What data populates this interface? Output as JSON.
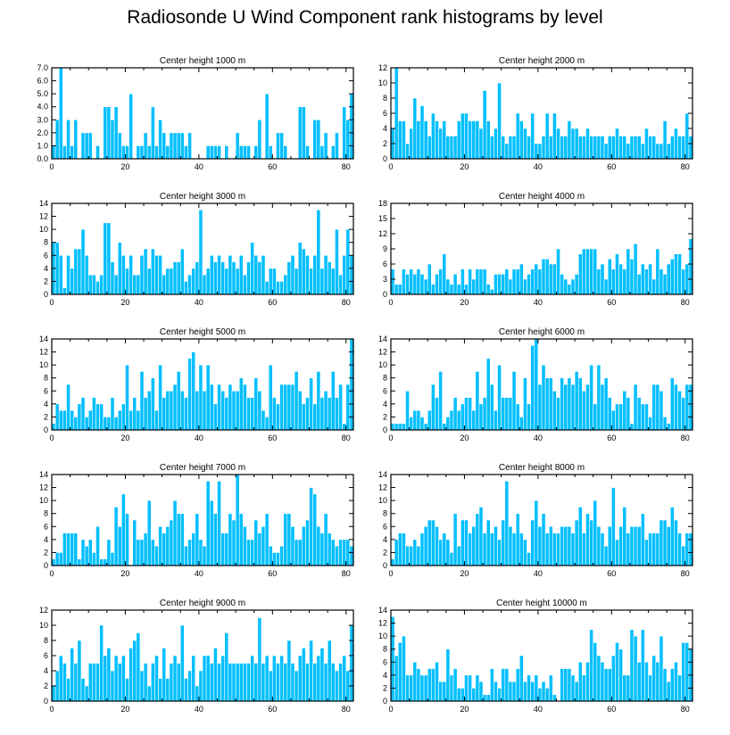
{
  "title": "Radiosonde U Wind Component rank histograms by level",
  "colors": {
    "bar": "#00bfff",
    "bar_edge": "#ffffff",
    "axis": "#000000"
  },
  "chart_data": [
    {
      "type": "bar",
      "title": "Center height 1000 m",
      "xlim": [
        0,
        82
      ],
      "xticks": [
        0,
        20,
        40,
        60,
        80
      ],
      "ylim": [
        0,
        7
      ],
      "yticks": [
        "0.0",
        "1.0",
        "2.0",
        "3.0",
        "4.0",
        "5.0",
        "6.0",
        "7.0"
      ],
      "values": [
        1,
        3,
        7,
        1,
        3,
        1,
        3,
        0,
        2,
        2,
        2,
        0,
        1,
        0,
        4,
        4,
        3,
        4,
        2,
        1,
        1,
        5,
        0,
        1,
        1,
        2,
        1,
        4,
        1,
        3,
        2,
        1,
        2,
        2,
        2,
        2,
        1,
        2,
        0,
        0,
        0,
        0,
        1,
        1,
        1,
        1,
        0,
        1,
        0,
        0,
        2,
        1,
        1,
        1,
        0,
        1,
        3,
        0,
        5,
        1,
        0,
        2,
        2,
        1,
        0,
        0,
        0,
        4,
        4,
        1,
        0,
        3,
        3,
        1,
        2,
        0,
        1,
        2,
        0,
        4,
        3,
        5
      ]
    },
    {
      "type": "bar",
      "title": "Center height 2000 m",
      "xlim": [
        0,
        82
      ],
      "xticks": [
        0,
        20,
        40,
        60,
        80
      ],
      "ylim": [
        0,
        12
      ],
      "yticks": [
        "0",
        "2",
        "4",
        "6",
        "8",
        "10",
        "12"
      ],
      "values": [
        4,
        12,
        5,
        5,
        2,
        4,
        8,
        5,
        7,
        5,
        3,
        6,
        5,
        4,
        5,
        3,
        3,
        3,
        5,
        6,
        6,
        5,
        5,
        5,
        4,
        9,
        5,
        3,
        4,
        10,
        3,
        2,
        3,
        3,
        6,
        5,
        4,
        3,
        6,
        2,
        2,
        3,
        6,
        3,
        6,
        4,
        3,
        3,
        5,
        4,
        4,
        3,
        3,
        4,
        3,
        3,
        3,
        3,
        2,
        3,
        3,
        4,
        3,
        3,
        2,
        3,
        3,
        3,
        2,
        4,
        3,
        3,
        2,
        2,
        5,
        2,
        3,
        4,
        3,
        3,
        6,
        3
      ]
    },
    {
      "type": "bar",
      "title": "Center height 3000 m",
      "xlim": [
        0,
        82
      ],
      "xticks": [
        0,
        20,
        40,
        60,
        80
      ],
      "ylim": [
        0,
        14
      ],
      "yticks": [
        "0",
        "2",
        "4",
        "6",
        "8",
        "10",
        "12",
        "14"
      ],
      "values": [
        8,
        8,
        6,
        1,
        6,
        4,
        7,
        7,
        10,
        6,
        3,
        3,
        2,
        3,
        11,
        11,
        5,
        3,
        8,
        6,
        4,
        6,
        3,
        3,
        6,
        7,
        4,
        7,
        6,
        6,
        3,
        4,
        4,
        5,
        5,
        7,
        2,
        3,
        4,
        5,
        13,
        3,
        4,
        6,
        5,
        6,
        5,
        4,
        6,
        5,
        4,
        6,
        3,
        5,
        8,
        6,
        5,
        6,
        2,
        4,
        4,
        2,
        2,
        3,
        5,
        6,
        4,
        8,
        7,
        6,
        4,
        6,
        13,
        4,
        6,
        5,
        4,
        10,
        3,
        6,
        10,
        6
      ]
    },
    {
      "type": "bar",
      "title": "Center height 4000 m",
      "xlim": [
        0,
        82
      ],
      "xticks": [
        0,
        20,
        40,
        60,
        80
      ],
      "ylim": [
        0,
        18
      ],
      "yticks": [
        "0",
        "3",
        "6",
        "9",
        "12",
        "15",
        "18"
      ],
      "values": [
        5,
        2,
        2,
        5,
        4,
        5,
        4,
        5,
        4,
        3,
        6,
        2,
        4,
        5,
        8,
        3,
        2,
        4,
        2,
        5,
        2,
        5,
        3,
        5,
        5,
        5,
        2,
        1,
        4,
        4,
        4,
        5,
        3,
        5,
        5,
        6,
        3,
        4,
        5,
        6,
        5,
        7,
        7,
        6,
        6,
        9,
        4,
        3,
        2,
        3,
        4,
        8,
        9,
        9,
        9,
        9,
        5,
        6,
        3,
        7,
        5,
        8,
        6,
        5,
        9,
        7,
        10,
        4,
        6,
        5,
        6,
        3,
        9,
        5,
        4,
        6,
        7,
        8,
        8,
        5,
        6,
        11
      ]
    },
    {
      "type": "bar",
      "title": "Center height 5000 m",
      "xlim": [
        0,
        82
      ],
      "xticks": [
        0,
        20,
        40,
        60,
        80
      ],
      "ylim": [
        0,
        14
      ],
      "yticks": [
        "0",
        "2",
        "4",
        "6",
        "8",
        "10",
        "12",
        "14"
      ],
      "values": [
        1,
        4,
        3,
        3,
        7,
        3,
        2,
        4,
        5,
        2,
        3,
        5,
        4,
        4,
        2,
        2,
        5,
        2,
        3,
        4,
        10,
        3,
        5,
        3,
        9,
        5,
        6,
        8,
        3,
        10,
        5,
        6,
        6,
        7,
        9,
        6,
        5,
        11,
        12,
        6,
        10,
        6,
        10,
        7,
        4,
        7,
        6,
        5,
        7,
        6,
        6,
        8,
        7,
        5,
        5,
        8,
        6,
        3,
        2,
        10,
        5,
        4,
        7,
        7,
        7,
        7,
        9,
        6,
        4,
        5,
        8,
        4,
        9,
        5,
        6,
        5,
        9,
        5,
        7,
        1,
        7,
        14
      ]
    },
    {
      "type": "bar",
      "title": "Center height 6000 m",
      "xlim": [
        0,
        82
      ],
      "xticks": [
        0,
        20,
        40,
        60,
        80
      ],
      "ylim": [
        0,
        14
      ],
      "yticks": [
        "0",
        "2",
        "4",
        "6",
        "8",
        "10",
        "12",
        "14"
      ],
      "values": [
        1,
        1,
        1,
        1,
        6,
        2,
        3,
        3,
        2,
        1,
        3,
        7,
        5,
        9,
        1,
        2,
        3,
        5,
        3,
        4,
        5,
        5,
        3,
        9,
        4,
        5,
        11,
        7,
        3,
        10,
        5,
        5,
        5,
        9,
        4,
        2,
        8,
        4,
        13,
        14,
        7,
        10,
        8,
        8,
        6,
        5,
        8,
        7,
        8,
        7,
        9,
        8,
        6,
        7,
        10,
        4,
        10,
        7,
        8,
        5,
        3,
        4,
        4,
        6,
        5,
        1,
        7,
        5,
        4,
        4,
        2,
        7,
        7,
        6,
        2,
        1,
        8,
        7,
        6,
        5,
        7,
        7
      ]
    },
    {
      "type": "bar",
      "title": "Center height 7000 m",
      "xlim": [
        0,
        82
      ],
      "xticks": [
        0,
        20,
        40,
        60,
        80
      ],
      "ylim": [
        0,
        14
      ],
      "yticks": [
        "0",
        "2",
        "4",
        "6",
        "8",
        "10",
        "12",
        "14"
      ],
      "values": [
        1,
        2,
        2,
        5,
        5,
        5,
        5,
        1,
        4,
        3,
        4,
        2,
        6,
        1,
        1,
        4,
        2,
        9,
        6,
        11,
        8,
        0,
        7,
        4,
        4,
        5,
        10,
        4,
        3,
        6,
        5,
        6,
        7,
        10,
        8,
        8,
        3,
        4,
        5,
        8,
        4,
        3,
        13,
        10,
        8,
        13,
        5,
        5,
        8,
        7,
        14,
        8,
        6,
        4,
        4,
        7,
        5,
        6,
        8,
        3,
        2,
        2,
        3,
        8,
        8,
        6,
        4,
        4,
        6,
        7,
        12,
        11,
        6,
        5,
        8,
        5,
        4,
        3,
        4,
        4,
        4,
        3
      ]
    },
    {
      "type": "bar",
      "title": "Center height 8000 m",
      "xlim": [
        0,
        82
      ],
      "xticks": [
        0,
        20,
        40,
        60,
        80
      ],
      "ylim": [
        0,
        14
      ],
      "yticks": [
        "0",
        "2",
        "4",
        "6",
        "8",
        "10",
        "12",
        "14"
      ],
      "values": [
        1,
        4,
        5,
        5,
        3,
        3,
        4,
        3,
        5,
        6,
        7,
        7,
        6,
        4,
        5,
        4,
        2,
        8,
        3,
        7,
        7,
        5,
        6,
        8,
        9,
        5,
        7,
        5,
        6,
        4,
        7,
        13,
        6,
        5,
        8,
        5,
        4,
        2,
        7,
        10,
        6,
        8,
        5,
        6,
        5,
        5,
        6,
        6,
        6,
        5,
        7,
        9,
        5,
        8,
        7,
        10,
        6,
        5,
        3,
        6,
        12,
        4,
        6,
        9,
        5,
        6,
        6,
        6,
        8,
        4,
        5,
        5,
        5,
        7,
        7,
        6,
        9,
        7,
        5,
        3,
        5,
        5
      ]
    },
    {
      "type": "bar",
      "title": "Center height 9000 m",
      "xlim": [
        0,
        82
      ],
      "xticks": [
        0,
        20,
        40,
        60,
        80
      ],
      "ylim": [
        0,
        12
      ],
      "yticks": [
        "0",
        "2",
        "4",
        "6",
        "8",
        "10",
        "12"
      ],
      "values": [
        2,
        4,
        6,
        5,
        3,
        7,
        5,
        8,
        3,
        2,
        5,
        5,
        5,
        10,
        6,
        7,
        4,
        6,
        5,
        6,
        3,
        7,
        8,
        9,
        4,
        5,
        2,
        5,
        6,
        3,
        7,
        3,
        5,
        6,
        5,
        10,
        3,
        4,
        6,
        2,
        4,
        6,
        6,
        5,
        7,
        5,
        6,
        9,
        5,
        5,
        5,
        5,
        5,
        5,
        6,
        5,
        11,
        5,
        6,
        4,
        6,
        5,
        6,
        5,
        8,
        5,
        4,
        6,
        7,
        5,
        8,
        5,
        6,
        7,
        5,
        8,
        5,
        4,
        5,
        6,
        4,
        10
      ]
    },
    {
      "type": "bar",
      "title": "Center height 10000 m",
      "xlim": [
        0,
        82
      ],
      "xticks": [
        0,
        20,
        40,
        60,
        80
      ],
      "ylim": [
        0,
        14
      ],
      "yticks": [
        "0",
        "2",
        "4",
        "6",
        "8",
        "10",
        "12",
        "14"
      ],
      "values": [
        13,
        7,
        9,
        10,
        4,
        4,
        6,
        5,
        4,
        4,
        5,
        5,
        6,
        3,
        3,
        8,
        4,
        5,
        2,
        2,
        4,
        4,
        2,
        4,
        3,
        1,
        1,
        5,
        3,
        2,
        5,
        5,
        3,
        3,
        5,
        7,
        3,
        4,
        3,
        4,
        2,
        3,
        2,
        4,
        1,
        0,
        5,
        5,
        5,
        4,
        3,
        6,
        4,
        6,
        11,
        9,
        7,
        6,
        5,
        5,
        7,
        9,
        8,
        4,
        4,
        11,
        10,
        6,
        11,
        6,
        4,
        7,
        6,
        10,
        5,
        3,
        5,
        6,
        4,
        9,
        9,
        8
      ]
    }
  ]
}
